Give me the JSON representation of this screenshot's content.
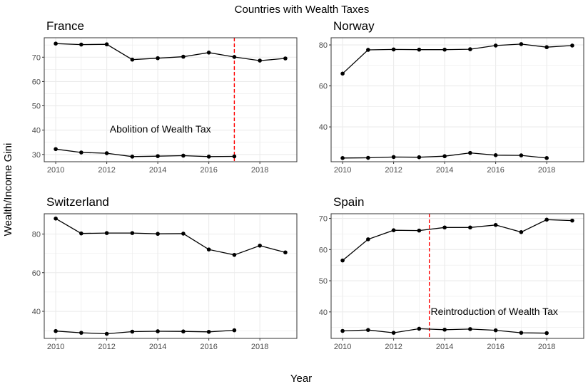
{
  "chart_data": {
    "type": "line",
    "title": "Countries with Wealth Taxes",
    "xlabel": "Year",
    "ylabel": "Wealth/Income Gini",
    "grid": true,
    "legend": "none",
    "colors": {
      "line": "#000000",
      "point": "#000000",
      "vline": "#ff0000",
      "grid": "#ebebeb",
      "border": "#333333"
    },
    "panels": [
      {
        "name": "France",
        "xticks": [
          2010,
          2012,
          2014,
          2016,
          2018
        ],
        "yticks": [
          30,
          40,
          50,
          60,
          70
        ],
        "xlim": [
          2009.55,
          2019.45
        ],
        "ylim": [
          27.0,
          78.0
        ],
        "series": [
          {
            "x": [
              2010,
              2011,
              2012,
              2013,
              2014,
              2015,
              2016,
              2017,
              2018,
              2019
            ],
            "y": [
              75.6,
              75.2,
              75.3,
              69.0,
              69.6,
              70.2,
              71.9,
              70.1,
              68.6,
              69.5
            ]
          },
          {
            "x": [
              2010,
              2011,
              2012,
              2013,
              2014,
              2015,
              2016,
              2017
            ],
            "y": [
              32.2,
              30.8,
              30.5,
              29.1,
              29.3,
              29.5,
              29.1,
              29.2
            ]
          }
        ],
        "vline": 2017,
        "annotation": {
          "text": "Abolition of Wealth Tax",
          "x": 2014.1,
          "y": 39.0
        }
      },
      {
        "name": "Norway",
        "xticks": [
          2010,
          2012,
          2014,
          2016,
          2018
        ],
        "yticks": [
          40,
          60,
          80
        ],
        "xlim": [
          2009.55,
          2019.45
        ],
        "ylim": [
          23.0,
          83.5
        ],
        "series": [
          {
            "x": [
              2010,
              2011,
              2012,
              2013,
              2014,
              2015,
              2016,
              2017,
              2018,
              2019
            ],
            "y": [
              66.0,
              77.6,
              77.8,
              77.7,
              77.7,
              77.9,
              79.7,
              80.4,
              78.9,
              79.7
            ]
          },
          {
            "x": [
              2010,
              2011,
              2012,
              2013,
              2014,
              2015,
              2016,
              2017,
              2018
            ],
            "y": [
              24.8,
              24.9,
              25.3,
              25.2,
              25.7,
              27.3,
              26.2,
              26.1,
              24.8
            ]
          }
        ]
      },
      {
        "name": "Switzerland",
        "xticks": [
          2010,
          2012,
          2014,
          2016,
          2018
        ],
        "yticks": [
          40,
          60,
          80
        ],
        "xlim": [
          2009.55,
          2019.45
        ],
        "ylim": [
          26.0,
          90.5
        ],
        "series": [
          {
            "x": [
              2010,
              2011,
              2012,
              2013,
              2014,
              2015,
              2016,
              2017,
              2018,
              2019
            ],
            "y": [
              88.0,
              80.3,
              80.5,
              80.5,
              80.1,
              80.2,
              72.0,
              69.2,
              74.0,
              70.5
            ]
          },
          {
            "x": [
              2010,
              2011,
              2012,
              2013,
              2014,
              2015,
              2016,
              2017
            ],
            "y": [
              29.8,
              28.9,
              28.4,
              29.5,
              29.7,
              29.6,
              29.4,
              30.2
            ]
          }
        ]
      },
      {
        "name": "Spain",
        "xticks": [
          2010,
          2012,
          2014,
          2016,
          2018
        ],
        "yticks": [
          30,
          40,
          50,
          60,
          70
        ],
        "xlim": [
          2009.55,
          2019.45
        ],
        "ylim": [
          31.5,
          71.5
        ],
        "series": [
          {
            "x": [
              2010,
              2011,
              2012,
              2013,
              2014,
              2015,
              2016,
              2017,
              2018,
              2019
            ],
            "y": [
              56.5,
              63.3,
              66.2,
              66.1,
              67.1,
              67.1,
              67.9,
              65.6,
              69.6,
              69.3
            ]
          },
          {
            "x": [
              2010,
              2011,
              2012,
              2013,
              2014,
              2015,
              2016,
              2017,
              2018
            ],
            "y": [
              33.9,
              34.2,
              33.3,
              34.6,
              34.3,
              34.5,
              34.1,
              33.3,
              33.2
            ]
          }
        ],
        "vline": 2013.4,
        "annotation": {
          "text": "Reintroduction of Wealth Tax",
          "x": 2013.45,
          "y": 39.0
        }
      }
    ]
  }
}
